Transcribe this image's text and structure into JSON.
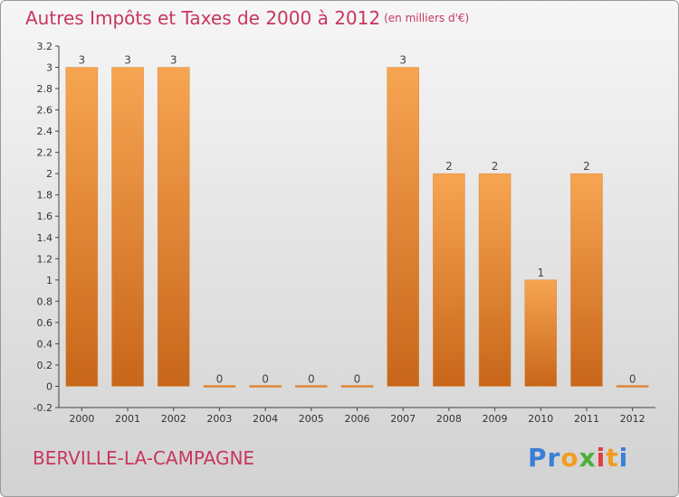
{
  "title": "Autres Impôts et Taxes de 2000 à 2012",
  "title_unit": "(en milliers d'€)",
  "commune": "BERVILLE-LA-CAMPAGNE",
  "logo": {
    "letters": [
      "P",
      "r",
      "o",
      "x",
      "i",
      "t",
      "i"
    ],
    "colors": [
      "#3a7fd5",
      "#3a7fd5",
      "#f29c1f",
      "#4caf3a",
      "#e23c3c",
      "#f29c1f",
      "#3a7fd5"
    ]
  },
  "colors": {
    "bar_top": "#f7a552",
    "bar_bottom": "#c8661a",
    "title": "#c8365f"
  },
  "chart_data": {
    "type": "bar",
    "categories": [
      "2000",
      "2001",
      "2002",
      "2003",
      "2004",
      "2005",
      "2006",
      "2007",
      "2008",
      "2009",
      "2010",
      "2011",
      "2012"
    ],
    "values": [
      3,
      3,
      3,
      0,
      0,
      0,
      0,
      3,
      2,
      2,
      1,
      2,
      0
    ],
    "data_labels": [
      "3",
      "3",
      "3",
      "0",
      "0",
      "0",
      "0",
      "3",
      "2",
      "2",
      "1",
      "2",
      "0"
    ],
    "yticks": [
      "-0.2",
      "0",
      "0.2",
      "0.4",
      "0.6",
      "0.8",
      "1",
      "1.2",
      "1.4",
      "1.6",
      "1.8",
      "2",
      "2.2",
      "2.4",
      "2.6",
      "2.8",
      "3",
      "3.2"
    ],
    "ylim": [
      -0.2,
      3.2
    ],
    "grid": false,
    "legend": "none"
  }
}
